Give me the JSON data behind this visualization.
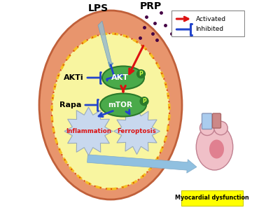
{
  "bg_color": "#ffffff",
  "cell_outer_color": "#e8956d",
  "cell_outer_edge": "#c0603a",
  "cell_inner_color": "#f8f5a0",
  "cell_border_dotted": "#f5c020",
  "cell_border_edge": "#e05010",
  "akt_color": "#4aaa4a",
  "akt_edge": "#2a7a2a",
  "mtor_color": "#4aaa4a",
  "mtor_edge": "#2a7a2a",
  "lps_label": "LPS",
  "prp_label": "PRP",
  "akti_label": "AKTi",
  "rapa_label": "Rapa",
  "inflammation_text": "Inflammation",
  "ferroptosis_text": "Ferroptosis",
  "myocardial_text": "Myocardial dysfunction",
  "red_arrow_color": "#dd1111",
  "blue_arrow_color": "#2244cc",
  "light_blue_arrow": "#90c0e0",
  "legend_activated": "Activated",
  "legend_inhibited": "Inhibited",
  "dots_color": "#440044",
  "needle_color": "#99bbcc",
  "starburst_color": "#c8d8ee",
  "starburst_edge": "#99aabb",
  "heart_body": "#f0c0c8",
  "heart_edge": "#c08090",
  "heart_detail": "#e08090",
  "tube1_color": "#aaccee",
  "tube2_color": "#cc8888",
  "myoc_bg": "#ffff00"
}
